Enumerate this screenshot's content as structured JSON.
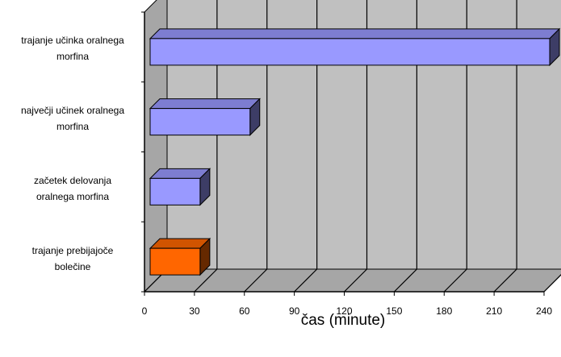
{
  "chart_data": {
    "type": "bar",
    "orientation": "horizontal",
    "three_d": true,
    "categories": [
      "trajanje prebijajoče bolečine",
      "začetek delovanja oralnega morfina",
      "največji učinek oralnega morfina",
      "trajanje učinka oralnega morfina"
    ],
    "category_lines": [
      [
        "trajanje prebijajoče",
        "bolečine"
      ],
      [
        "začetek delovanja",
        "oralnega morfina"
      ],
      [
        "največji učinek oralnega",
        "morfina"
      ],
      [
        "trajanje učinka oralnega",
        "morfina"
      ]
    ],
    "values": [
      30,
      30,
      60,
      240
    ],
    "bar_colors": [
      "#ff6600",
      "#9999ff",
      "#9999ff",
      "#9999ff"
    ],
    "xlabel": "čas (minute)",
    "ylabel": "",
    "title": "",
    "xlim": [
      0,
      240
    ],
    "xticks": [
      "0",
      "30",
      "60",
      "90",
      "120",
      "150",
      "180",
      "210",
      "240"
    ],
    "grid": true,
    "legend": "none"
  },
  "colors": {
    "wall": "#c0c0c0",
    "floor": "#a6a6a6",
    "grid": "#000000"
  }
}
